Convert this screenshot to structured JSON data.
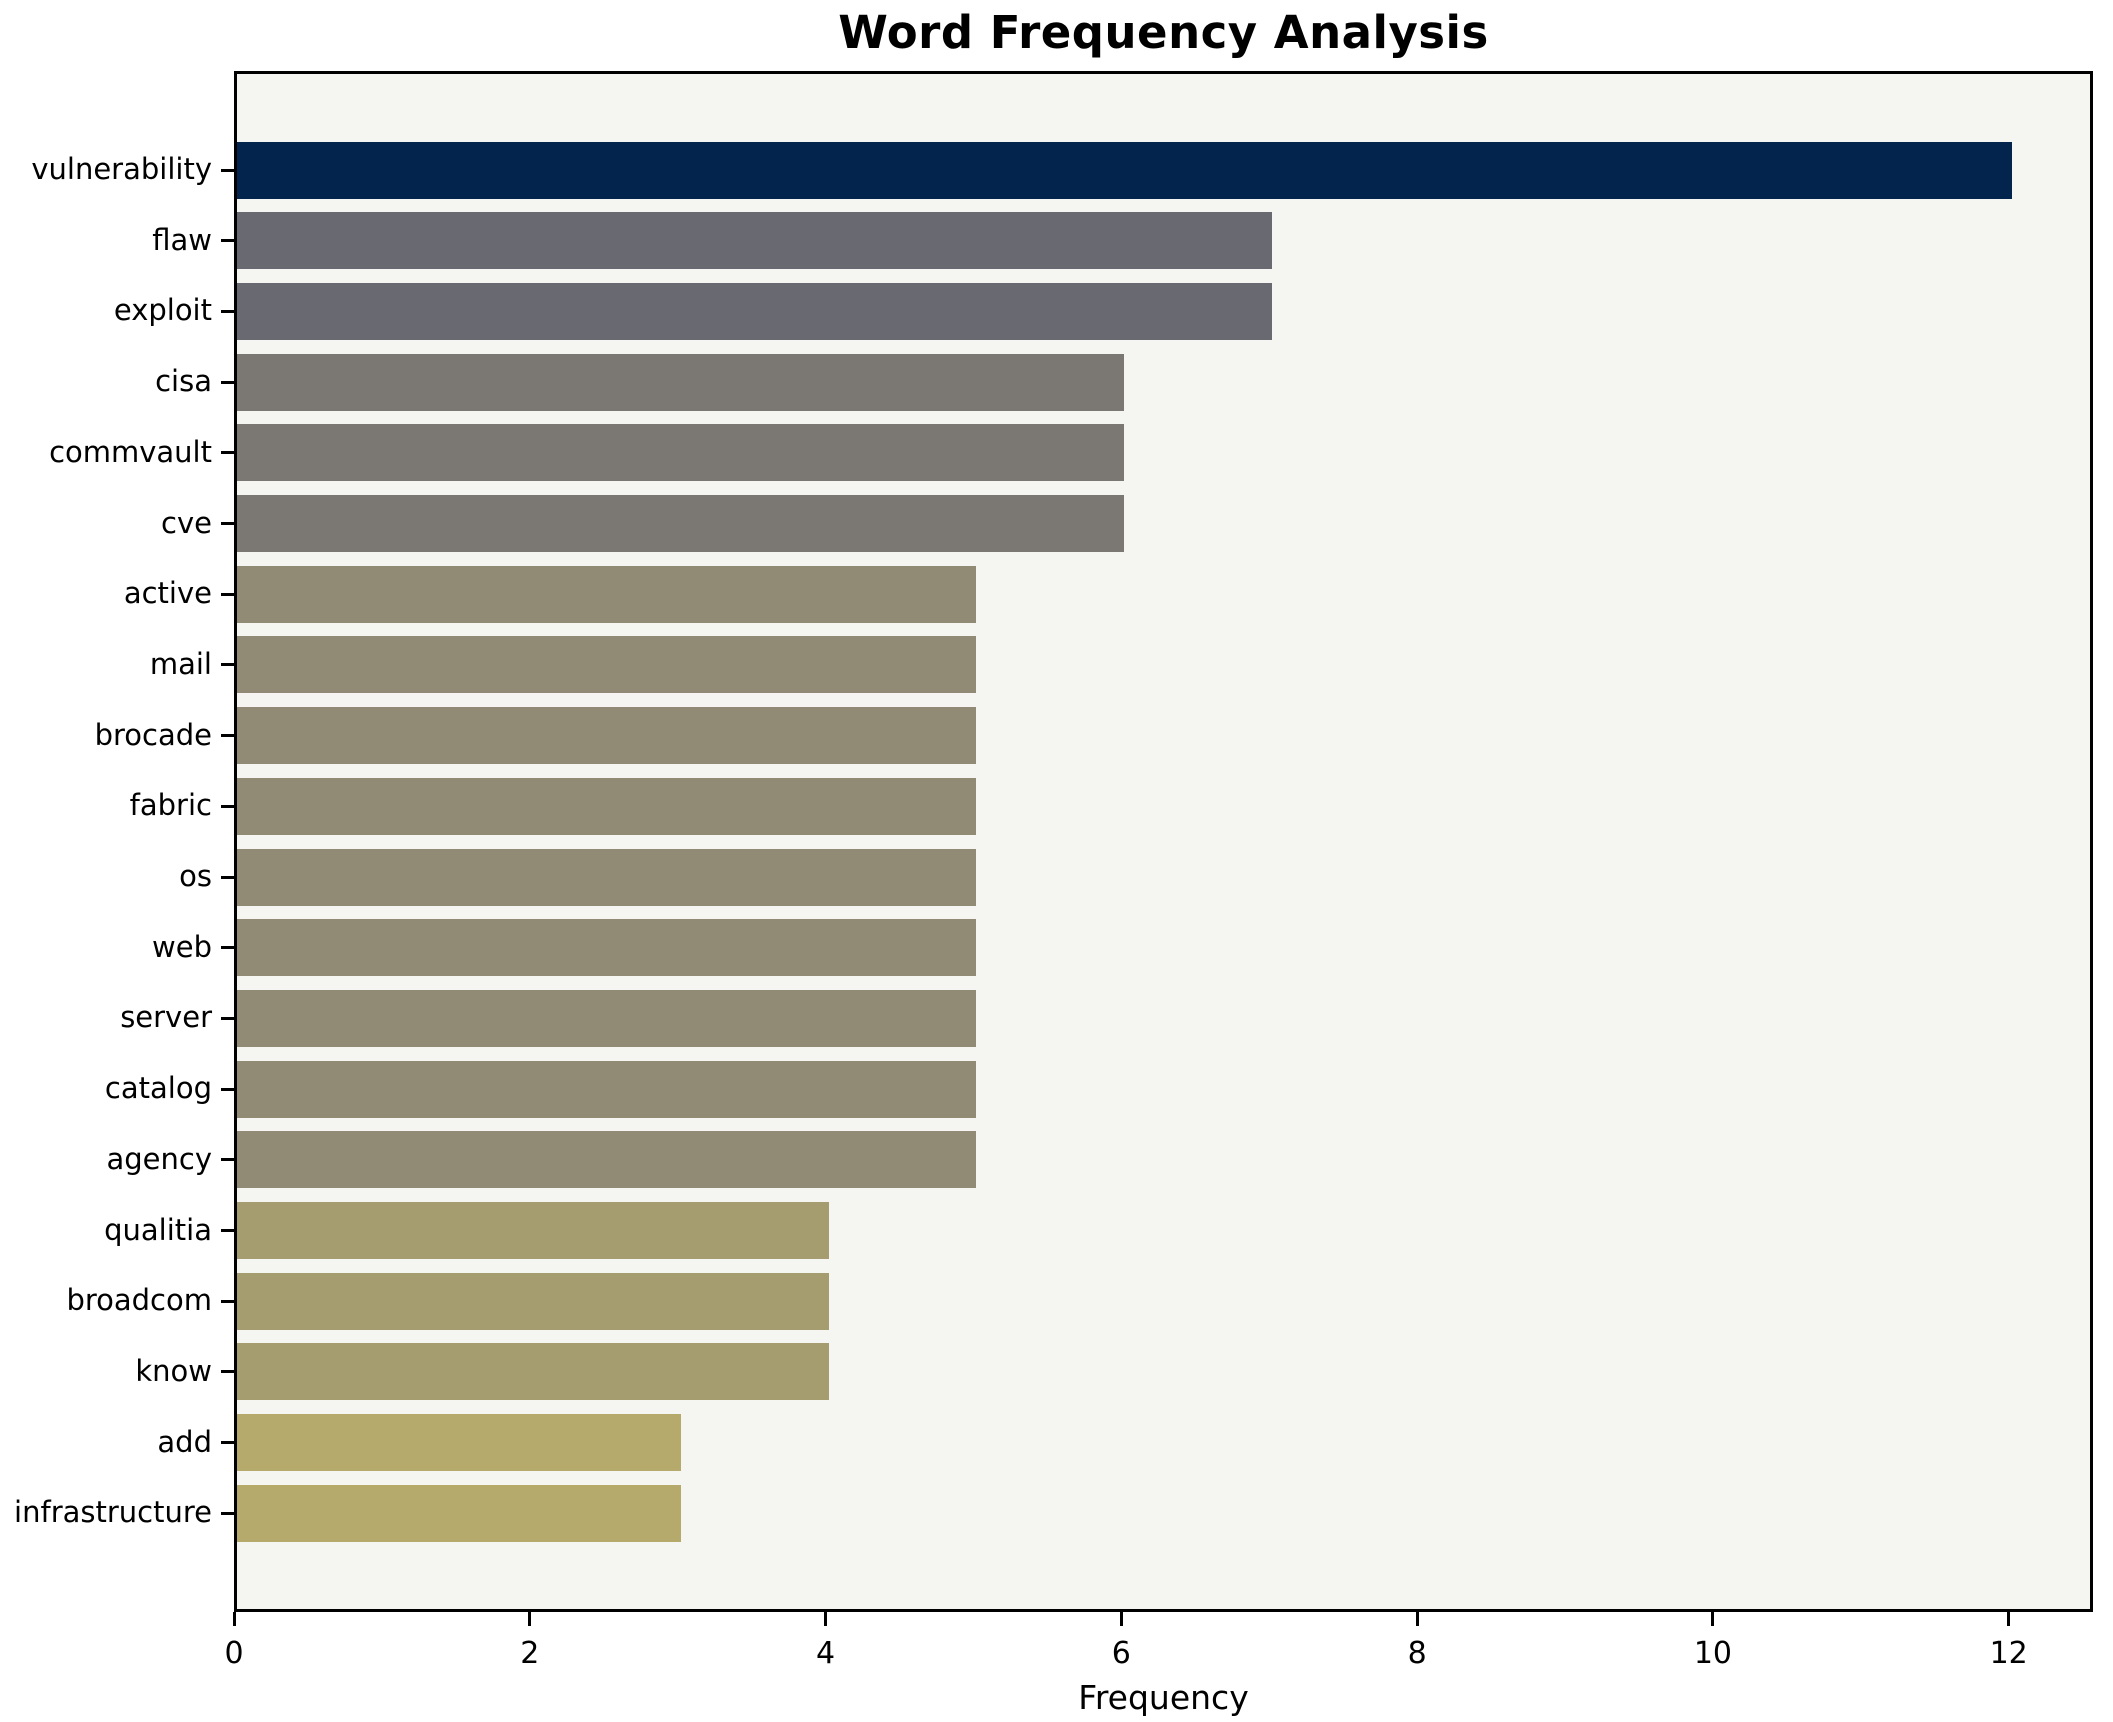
{
  "chart_data": {
    "type": "bar",
    "orientation": "horizontal",
    "title": "Word Frequency Analysis",
    "xlabel": "Frequency",
    "ylabel": "",
    "categories": [
      "vulnerability",
      "flaw",
      "exploit",
      "cisa",
      "commvault",
      "cve",
      "active",
      "mail",
      "brocade",
      "fabric",
      "os",
      "web",
      "server",
      "catalog",
      "agency",
      "qualitia",
      "broadcom",
      "know",
      "add",
      "infrastructure"
    ],
    "values": [
      12,
      7,
      7,
      6,
      6,
      6,
      5,
      5,
      5,
      5,
      5,
      5,
      5,
      5,
      5,
      4,
      4,
      4,
      3,
      3
    ],
    "bar_colors": [
      "#03254d",
      "#696a71",
      "#696a71",
      "#7b7873",
      "#7b7873",
      "#7b7873",
      "#918a75",
      "#918a75",
      "#918a75",
      "#918a75",
      "#918a75",
      "#918a75",
      "#918a75",
      "#918a75",
      "#918a75",
      "#a59c70",
      "#a59c70",
      "#a59c70",
      "#b5aa6c",
      "#b5aa6c"
    ],
    "xticks": [
      0,
      2,
      4,
      6,
      8,
      10,
      12
    ],
    "xlim": [
      0,
      12.57
    ],
    "grid": false,
    "legend": null,
    "plot_background": "#f5f5f2",
    "figure_background": "#ffffff",
    "spine_color": "#000000"
  }
}
